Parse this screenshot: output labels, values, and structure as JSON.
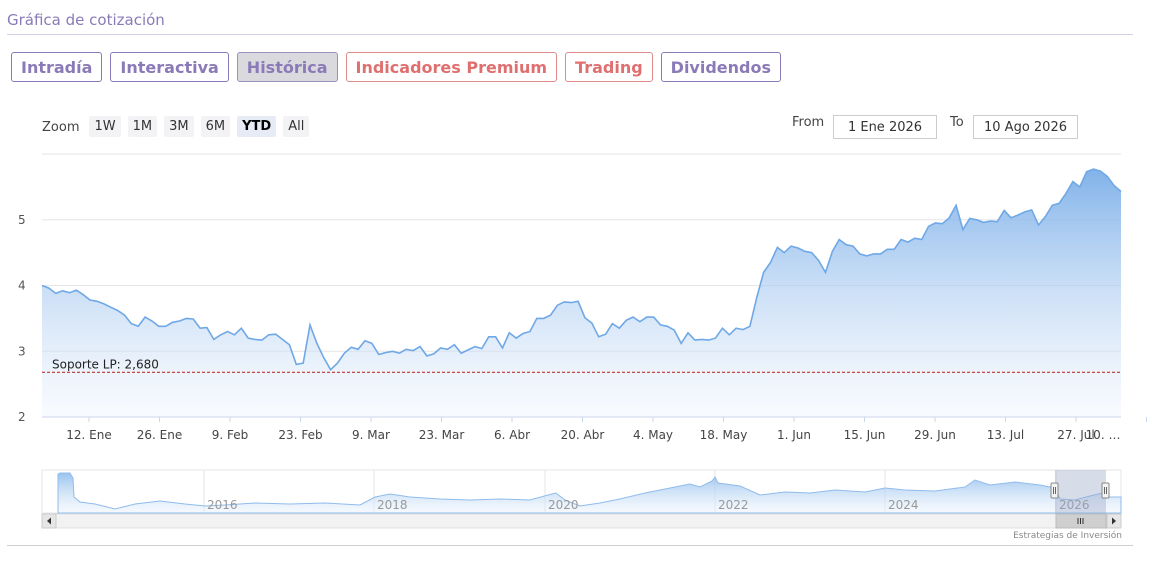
{
  "header": {
    "title": "Gráfica de cotización"
  },
  "tabs": [
    {
      "label": "Intradía",
      "variant": "normal"
    },
    {
      "label": "Interactiva",
      "variant": "normal"
    },
    {
      "label": "Histórica",
      "variant": "active"
    },
    {
      "label": "Indicadores Premium",
      "variant": "premium"
    },
    {
      "label": "Trading",
      "variant": "premium"
    },
    {
      "label": "Dividendos",
      "variant": "normal"
    }
  ],
  "zoom": {
    "label": "Zoom",
    "buttons": [
      "1W",
      "1M",
      "3M",
      "6M",
      "YTD",
      "All"
    ],
    "selected": "YTD"
  },
  "range": {
    "from_label": "From",
    "from_value": "1 Ene 2026",
    "to_label": "To",
    "to_value": "10 Ago 2026"
  },
  "colors": {
    "line": "#6fa8e6",
    "area_top": "#7aaee8",
    "support": "#c03030",
    "accent": "#8a7bb8"
  },
  "chart_data": {
    "type": "area",
    "title": "",
    "xlabel": "",
    "ylabel": "",
    "ylim": [
      2,
      6
    ],
    "yticks": [
      2,
      3,
      4,
      5
    ],
    "x_ticks": [
      "12. Ene",
      "26. Ene",
      "9. Feb",
      "23. Feb",
      "9. Mar",
      "23. Mar",
      "6. Abr",
      "20. Abr",
      "4. May",
      "18. May",
      "1. Jun",
      "15. Jun",
      "29. Jun",
      "13. Jul",
      "27. Jul",
      "10. …"
    ],
    "series": [
      {
        "values": [
          4.0,
          3.96,
          3.88,
          3.92,
          3.89,
          3.93,
          3.86,
          3.78,
          3.76,
          3.72,
          3.67,
          3.62,
          3.55,
          3.42,
          3.38,
          3.52,
          3.46,
          3.38,
          3.38,
          3.44,
          3.46,
          3.5,
          3.49,
          3.35,
          3.36,
          3.18,
          3.25,
          3.3,
          3.25,
          3.35,
          3.2,
          3.18,
          3.17,
          3.25,
          3.26,
          3.18,
          3.1,
          2.8,
          2.82,
          3.4,
          3.12,
          2.9,
          2.72,
          2.82,
          2.97,
          3.06,
          3.03,
          3.16,
          3.12,
          2.95,
          2.98,
          3.0,
          2.97,
          3.03,
          3.01,
          3.07,
          2.93,
          2.96,
          3.05,
          3.03,
          3.1,
          2.97,
          3.02,
          3.07,
          3.04,
          3.22,
          3.22,
          3.05,
          3.28,
          3.2,
          3.27,
          3.3,
          3.5,
          3.5,
          3.55,
          3.7,
          3.75,
          3.74,
          3.76,
          3.51,
          3.43,
          3.22,
          3.26,
          3.42,
          3.35,
          3.47,
          3.52,
          3.45,
          3.52,
          3.52,
          3.4,
          3.38,
          3.32,
          3.12,
          3.28,
          3.17,
          3.18,
          3.17,
          3.2,
          3.35,
          3.25,
          3.35,
          3.33,
          3.38,
          3.82,
          4.2,
          4.35,
          4.58,
          4.5,
          4.6,
          4.57,
          4.52,
          4.5,
          4.38,
          4.2,
          4.52,
          4.7,
          4.62,
          4.6,
          4.48,
          4.45,
          4.48,
          4.48,
          4.55,
          4.55,
          4.7,
          4.66,
          4.72,
          4.7,
          4.9,
          4.95,
          4.94,
          5.03,
          5.22,
          4.85,
          5.02,
          5.0,
          4.96,
          4.98,
          4.97,
          5.14,
          5.03,
          5.07,
          5.12,
          5.15,
          4.92,
          5.05,
          5.22,
          5.25,
          5.4,
          5.58,
          5.5,
          5.73,
          5.77,
          5.74,
          5.66,
          5.52,
          5.43
        ]
      }
    ],
    "annotations": [
      {
        "label": "Soporte LP: 2,680",
        "y": 2.68
      }
    ],
    "navigator": {
      "year_labels": [
        "2016",
        "2018",
        "2020",
        "2022",
        "2024",
        "2026"
      ]
    },
    "grid": true,
    "legend": "none"
  },
  "footer": {
    "credit": "Estrategias de Inversión"
  }
}
